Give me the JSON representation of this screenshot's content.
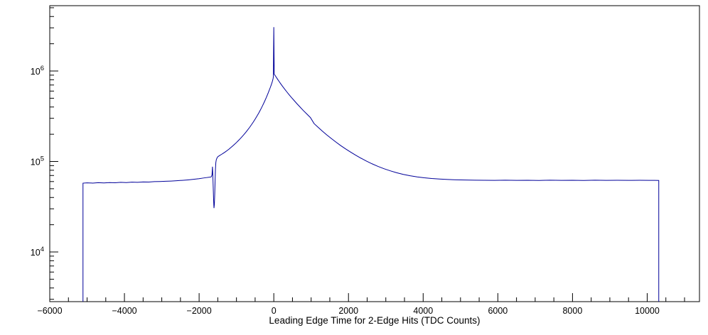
{
  "window": {
    "background_color": "#ffffff"
  },
  "chart_data": {
    "type": "line",
    "subtype": "histogram-outline",
    "title": "",
    "xlabel": "Leading Edge Time for 2-Edge Hits (TDC Counts)",
    "ylabel": "",
    "x_scale": "linear",
    "y_scale": "log",
    "xlim": [
      -6000,
      11400
    ],
    "ylim": [
      2825,
      5270000
    ],
    "grid": false,
    "legend_position": "none",
    "line_color": "#000099",
    "axis_color": "#000000",
    "x_major_step": 2000,
    "x_minor_step": 500,
    "x_ticks": [
      -6000,
      -4000,
      -2000,
      0,
      2000,
      4000,
      6000,
      8000,
      10000
    ],
    "x_tick_labels": [
      "−6000",
      "−4000",
      "−2000",
      "0",
      "2000",
      "4000",
      "6000",
      "8000",
      "10000"
    ],
    "y_ticks": [
      {
        "value": 10000,
        "label_base": "10",
        "label_exponent": "4"
      },
      {
        "value": 100000,
        "label_base": "10",
        "label_exponent": "5"
      },
      {
        "value": 1000000,
        "label_base": "10",
        "label_exponent": "6"
      }
    ],
    "features": {
      "left_edge_x": -5110,
      "left_plateau_counts": 58000,
      "notch_dip_x": -1600,
      "notch_dip_counts": 30500,
      "peak_x": 0,
      "peak_spike_counts": 3050000,
      "peak_smooth_counts": 930000,
      "right_plateau_counts": 62000,
      "right_edge_x": 10310
    },
    "points": [
      [
        -5110,
        2825
      ],
      [
        -5110,
        57600
      ],
      [
        -5000,
        58100
      ],
      [
        -4850,
        57700
      ],
      [
        -4700,
        58300
      ],
      [
        -4550,
        57900
      ],
      [
        -4400,
        58500
      ],
      [
        -4250,
        58200
      ],
      [
        -4100,
        58800
      ],
      [
        -3950,
        58400
      ],
      [
        -3800,
        59100
      ],
      [
        -3650,
        58900
      ],
      [
        -3500,
        59400
      ],
      [
        -3350,
        59200
      ],
      [
        -3200,
        59900
      ],
      [
        -3050,
        60100
      ],
      [
        -2900,
        60400
      ],
      [
        -2750,
        60800
      ],
      [
        -2600,
        61300
      ],
      [
        -2450,
        61900
      ],
      [
        -2300,
        62600
      ],
      [
        -2150,
        63500
      ],
      [
        -2000,
        64600
      ],
      [
        -1900,
        65500
      ],
      [
        -1800,
        66400
      ],
      [
        -1720,
        67100
      ],
      [
        -1675,
        67600
      ],
      [
        -1655,
        71000
      ],
      [
        -1642,
        87500
      ],
      [
        -1632,
        69000
      ],
      [
        -1622,
        51000
      ],
      [
        -1612,
        37500
      ],
      [
        -1602,
        30500
      ],
      [
        -1592,
        33500
      ],
      [
        -1582,
        43000
      ],
      [
        -1572,
        61000
      ],
      [
        -1562,
        83000
      ],
      [
        -1552,
        97500
      ],
      [
        -1540,
        104500
      ],
      [
        -1520,
        109500
      ],
      [
        -1500,
        112800
      ],
      [
        -1450,
        116500
      ],
      [
        -1400,
        119800
      ],
      [
        -1350,
        123500
      ],
      [
        -1300,
        127500
      ],
      [
        -1250,
        132000
      ],
      [
        -1200,
        137000
      ],
      [
        -1150,
        142500
      ],
      [
        -1100,
        148500
      ],
      [
        -1050,
        155000
      ],
      [
        -1000,
        162000
      ],
      [
        -950,
        170000
      ],
      [
        -900,
        178500
      ],
      [
        -850,
        188000
      ],
      [
        -800,
        198500
      ],
      [
        -750,
        210000
      ],
      [
        -700,
        223000
      ],
      [
        -650,
        237500
      ],
      [
        -600,
        254000
      ],
      [
        -550,
        272500
      ],
      [
        -500,
        293500
      ],
      [
        -450,
        317500
      ],
      [
        -400,
        345000
      ],
      [
        -350,
        377000
      ],
      [
        -300,
        414500
      ],
      [
        -250,
        458000
      ],
      [
        -200,
        510000
      ],
      [
        -150,
        572000
      ],
      [
        -100,
        647000
      ],
      [
        -70,
        700000
      ],
      [
        -50,
        740000
      ],
      [
        -35,
        775000
      ],
      [
        -20,
        820000
      ],
      [
        -12,
        860000
      ],
      [
        0,
        3050000
      ],
      [
        12,
        920000
      ],
      [
        25,
        905000
      ],
      [
        45,
        880000
      ],
      [
        70,
        848000
      ],
      [
        100,
        812000
      ],
      [
        140,
        768000
      ],
      [
        180,
        727000
      ],
      [
        230,
        681000
      ],
      [
        280,
        639000
      ],
      [
        340,
        594000
      ],
      [
        400,
        553000
      ],
      [
        470,
        511000
      ],
      [
        540,
        474000
      ],
      [
        620,
        435000
      ],
      [
        700,
        401000
      ],
      [
        790,
        366000
      ],
      [
        880,
        336000
      ],
      [
        980,
        306000
      ],
      [
        1080,
        262000
      ],
      [
        1190,
        238000
      ],
      [
        1300,
        216500
      ],
      [
        1420,
        196500
      ],
      [
        1540,
        179500
      ],
      [
        1660,
        164500
      ],
      [
        1790,
        150000
      ],
      [
        1920,
        138000
      ],
      [
        2050,
        127500
      ],
      [
        2190,
        117500
      ],
      [
        2330,
        109000
      ],
      [
        2480,
        101000
      ],
      [
        2630,
        94300
      ],
      [
        2790,
        88300
      ],
      [
        2950,
        83200
      ],
      [
        3120,
        78800
      ],
      [
        3290,
        75100
      ],
      [
        3470,
        72000
      ],
      [
        3650,
        69500
      ],
      [
        3840,
        67500
      ],
      [
        4030,
        66000
      ],
      [
        4230,
        64800
      ],
      [
        4440,
        63900
      ],
      [
        4660,
        63200
      ],
      [
        4890,
        62700
      ],
      [
        5130,
        62400
      ],
      [
        5380,
        62100
      ],
      [
        5640,
        62000
      ],
      [
        5910,
        61900
      ],
      [
        6200,
        62100
      ],
      [
        6500,
        61800
      ],
      [
        6800,
        62000
      ],
      [
        7100,
        61700
      ],
      [
        7400,
        62100
      ],
      [
        7700,
        61800
      ],
      [
        8000,
        62000
      ],
      [
        8300,
        61700
      ],
      [
        8600,
        62100
      ],
      [
        8900,
        61900
      ],
      [
        9200,
        62000
      ],
      [
        9500,
        61800
      ],
      [
        9800,
        62000
      ],
      [
        10050,
        61900
      ],
      [
        10200,
        61800
      ],
      [
        10310,
        61700
      ],
      [
        10310,
        2825
      ]
    ]
  }
}
